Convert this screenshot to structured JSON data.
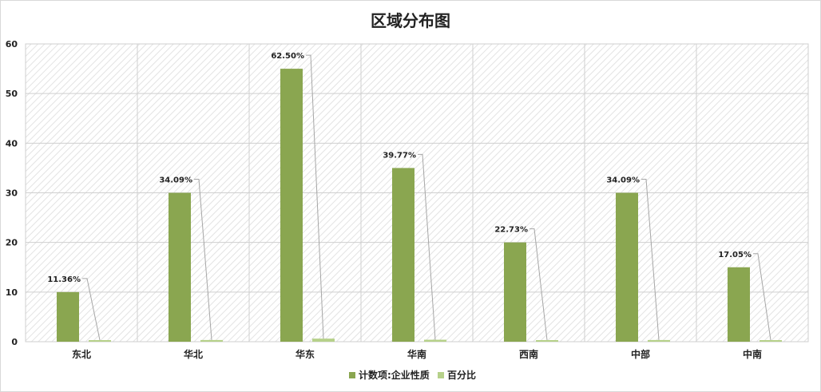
{
  "chart_data": {
    "type": "bar",
    "title": "区域分布图",
    "categories": [
      "东北",
      "华北",
      "华东",
      "华南",
      "西南",
      "中部",
      "中南"
    ],
    "series": [
      {
        "name": "计数项:企业性质",
        "values": [
          10,
          30,
          55,
          35,
          20,
          30,
          15
        ],
        "color": "#8aa650"
      },
      {
        "name": "百分比",
        "values": [
          0.1136,
          0.3409,
          0.625,
          0.3977,
          0.2273,
          0.3409,
          0.1705
        ],
        "color": "#b6d18a"
      }
    ],
    "data_labels": [
      "11.36%",
      "34.09%",
      "62.50%",
      "39.77%",
      "22.73%",
      "34.09%",
      "17.05%"
    ],
    "ylim": [
      0,
      60
    ],
    "yticks": [
      "0",
      "10",
      "20",
      "30",
      "40",
      "50",
      "60"
    ],
    "grid": true,
    "legend": "bottom"
  }
}
